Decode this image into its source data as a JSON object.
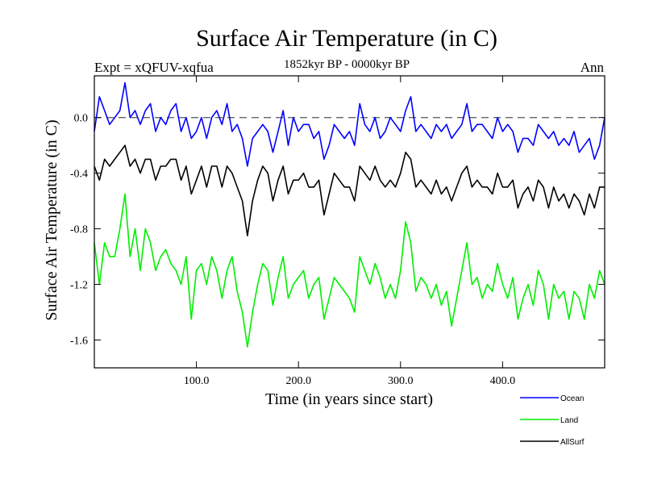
{
  "chart_data": {
    "type": "line",
    "title": "Surface Air Temperature (in C)",
    "subtitle": "1852kyr BP - 0000kyr BP",
    "expt_label": "Expt = xQFUV-xqfua",
    "season_label": "Ann",
    "xlabel": "Time (in years since start)",
    "ylabel": "Surface Air Temperature (in C)",
    "xlim": [
      0,
      500
    ],
    "ylim": [
      -1.8,
      0.3
    ],
    "x_ticks": [
      100,
      200,
      300,
      400
    ],
    "x_tick_labels": [
      "100.0",
      "200.0",
      "300.0",
      "400.0"
    ],
    "y_ticks": [
      0.0,
      -0.4,
      -0.8,
      -1.2,
      -1.6
    ],
    "y_tick_labels": [
      "0.0",
      "-0.4",
      "-0.8",
      "-1.2",
      "-1.6"
    ],
    "reference_line": 0.0,
    "legend_position": "bottom-right-outside",
    "series": [
      {
        "name": "Ocean",
        "color": "#0000ff",
        "x": [
          0,
          5,
          10,
          15,
          20,
          25,
          30,
          35,
          40,
          45,
          50,
          55,
          60,
          65,
          70,
          75,
          80,
          85,
          90,
          95,
          100,
          105,
          110,
          115,
          120,
          125,
          130,
          135,
          140,
          145,
          150,
          155,
          160,
          165,
          170,
          175,
          180,
          185,
          190,
          195,
          200,
          205,
          210,
          215,
          220,
          225,
          230,
          235,
          240,
          245,
          250,
          255,
          260,
          265,
          270,
          275,
          280,
          285,
          290,
          295,
          300,
          305,
          310,
          315,
          320,
          325,
          330,
          335,
          340,
          345,
          350,
          355,
          360,
          365,
          370,
          375,
          380,
          385,
          390,
          395,
          400,
          405,
          410,
          415,
          420,
          425,
          430,
          435,
          440,
          445,
          450,
          455,
          460,
          465,
          470,
          475,
          480,
          485,
          490,
          495,
          500
        ],
        "values": [
          -0.1,
          0.15,
          0.05,
          -0.05,
          0.0,
          0.05,
          0.25,
          0.0,
          0.05,
          -0.05,
          0.05,
          0.1,
          -0.1,
          0.0,
          -0.05,
          0.05,
          0.1,
          -0.1,
          0.0,
          -0.15,
          -0.1,
          0.0,
          -0.15,
          0.0,
          0.05,
          -0.05,
          0.1,
          -0.1,
          -0.05,
          -0.15,
          -0.35,
          -0.15,
          -0.1,
          -0.05,
          -0.1,
          -0.25,
          -0.1,
          0.05,
          -0.2,
          0.0,
          -0.1,
          -0.05,
          -0.05,
          -0.15,
          -0.1,
          -0.3,
          -0.2,
          -0.05,
          -0.1,
          -0.15,
          -0.1,
          -0.2,
          0.1,
          -0.05,
          -0.1,
          0.0,
          -0.15,
          -0.1,
          0.0,
          -0.05,
          -0.1,
          0.05,
          0.15,
          -0.1,
          -0.05,
          -0.1,
          -0.15,
          -0.05,
          -0.1,
          -0.05,
          -0.15,
          -0.1,
          -0.05,
          0.1,
          -0.1,
          -0.05,
          -0.05,
          -0.1,
          -0.15,
          0.0,
          -0.1,
          -0.05,
          -0.1,
          -0.25,
          -0.15,
          -0.15,
          -0.2,
          -0.05,
          -0.1,
          -0.15,
          -0.1,
          -0.2,
          -0.15,
          -0.2,
          -0.1,
          -0.25,
          -0.2,
          -0.15,
          -0.3,
          -0.2,
          0.0
        ]
      },
      {
        "name": "Land",
        "color": "#00ee00",
        "x": [
          0,
          5,
          10,
          15,
          20,
          25,
          30,
          35,
          40,
          45,
          50,
          55,
          60,
          65,
          70,
          75,
          80,
          85,
          90,
          95,
          100,
          105,
          110,
          115,
          120,
          125,
          130,
          135,
          140,
          145,
          150,
          155,
          160,
          165,
          170,
          175,
          180,
          185,
          190,
          195,
          200,
          205,
          210,
          215,
          220,
          225,
          230,
          235,
          240,
          245,
          250,
          255,
          260,
          265,
          270,
          275,
          280,
          285,
          290,
          295,
          300,
          305,
          310,
          315,
          320,
          325,
          330,
          335,
          340,
          345,
          350,
          355,
          360,
          365,
          370,
          375,
          380,
          385,
          390,
          395,
          400,
          405,
          410,
          415,
          420,
          425,
          430,
          435,
          440,
          445,
          450,
          455,
          460,
          465,
          470,
          475,
          480,
          485,
          490,
          495,
          500
        ],
        "values": [
          -0.9,
          -1.2,
          -0.9,
          -1.0,
          -1.0,
          -0.8,
          -0.55,
          -1.0,
          -0.8,
          -1.1,
          -0.8,
          -0.9,
          -1.1,
          -1.0,
          -0.95,
          -1.05,
          -1.1,
          -1.2,
          -1.0,
          -1.45,
          -1.1,
          -1.05,
          -1.2,
          -1.0,
          -1.1,
          -1.3,
          -1.1,
          -1.0,
          -1.25,
          -1.4,
          -1.65,
          -1.4,
          -1.2,
          -1.05,
          -1.1,
          -1.35,
          -1.15,
          -1.0,
          -1.3,
          -1.2,
          -1.15,
          -1.1,
          -1.3,
          -1.2,
          -1.15,
          -1.45,
          -1.3,
          -1.15,
          -1.2,
          -1.25,
          -1.3,
          -1.4,
          -1.0,
          -1.1,
          -1.2,
          -1.05,
          -1.15,
          -1.3,
          -1.2,
          -1.3,
          -1.1,
          -0.75,
          -0.9,
          -1.25,
          -1.15,
          -1.2,
          -1.3,
          -1.2,
          -1.35,
          -1.25,
          -1.5,
          -1.3,
          -1.1,
          -0.9,
          -1.2,
          -1.15,
          -1.3,
          -1.2,
          -1.25,
          -1.05,
          -1.2,
          -1.3,
          -1.15,
          -1.45,
          -1.3,
          -1.2,
          -1.35,
          -1.1,
          -1.2,
          -1.45,
          -1.2,
          -1.3,
          -1.25,
          -1.45,
          -1.25,
          -1.3,
          -1.45,
          -1.2,
          -1.3,
          -1.1,
          -1.2
        ]
      },
      {
        "name": "AllSurf",
        "color": "#000000",
        "x": [
          0,
          5,
          10,
          15,
          20,
          25,
          30,
          35,
          40,
          45,
          50,
          55,
          60,
          65,
          70,
          75,
          80,
          85,
          90,
          95,
          100,
          105,
          110,
          115,
          120,
          125,
          130,
          135,
          140,
          145,
          150,
          155,
          160,
          165,
          170,
          175,
          180,
          185,
          190,
          195,
          200,
          205,
          210,
          215,
          220,
          225,
          230,
          235,
          240,
          245,
          250,
          255,
          260,
          265,
          270,
          275,
          280,
          285,
          290,
          295,
          300,
          305,
          310,
          315,
          320,
          325,
          330,
          335,
          340,
          345,
          350,
          355,
          360,
          365,
          370,
          375,
          380,
          385,
          390,
          395,
          400,
          405,
          410,
          415,
          420,
          425,
          430,
          435,
          440,
          445,
          450,
          455,
          460,
          465,
          470,
          475,
          480,
          485,
          490,
          495,
          500
        ],
        "values": [
          -0.35,
          -0.45,
          -0.3,
          -0.35,
          -0.3,
          -0.25,
          -0.2,
          -0.35,
          -0.3,
          -0.4,
          -0.3,
          -0.3,
          -0.45,
          -0.35,
          -0.35,
          -0.3,
          -0.3,
          -0.45,
          -0.35,
          -0.55,
          -0.45,
          -0.35,
          -0.5,
          -0.35,
          -0.35,
          -0.5,
          -0.35,
          -0.4,
          -0.5,
          -0.6,
          -0.85,
          -0.6,
          -0.45,
          -0.35,
          -0.4,
          -0.6,
          -0.45,
          -0.35,
          -0.55,
          -0.45,
          -0.45,
          -0.4,
          -0.5,
          -0.5,
          -0.45,
          -0.7,
          -0.55,
          -0.4,
          -0.45,
          -0.5,
          -0.5,
          -0.6,
          -0.35,
          -0.4,
          -0.45,
          -0.35,
          -0.45,
          -0.5,
          -0.45,
          -0.5,
          -0.4,
          -0.25,
          -0.3,
          -0.5,
          -0.45,
          -0.5,
          -0.55,
          -0.45,
          -0.55,
          -0.5,
          -0.6,
          -0.5,
          -0.4,
          -0.35,
          -0.5,
          -0.45,
          -0.5,
          -0.5,
          -0.55,
          -0.4,
          -0.5,
          -0.5,
          -0.45,
          -0.65,
          -0.55,
          -0.5,
          -0.6,
          -0.45,
          -0.5,
          -0.65,
          -0.5,
          -0.6,
          -0.55,
          -0.65,
          -0.55,
          -0.6,
          -0.7,
          -0.55,
          -0.65,
          -0.5,
          -0.5
        ]
      }
    ]
  }
}
